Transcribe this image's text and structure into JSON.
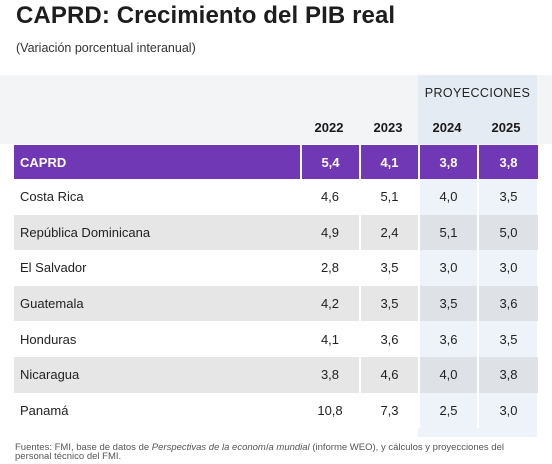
{
  "title": "CAPRD: Crecimiento del PIB real",
  "subtitle": "(Variación porcentual interanual)",
  "projections_label": "PROYECCIONES",
  "years": [
    "2022",
    "2023",
    "2024",
    "2025"
  ],
  "table": {
    "aggregate": {
      "name": "CAPRD",
      "values": [
        "5,4",
        "4,1",
        "3,8",
        "3,8"
      ]
    },
    "rows": [
      {
        "name": "Costa Rica",
        "values": [
          "4,6",
          "5,1",
          "4,0",
          "3,5"
        ]
      },
      {
        "name": "República Dominicana",
        "values": [
          "4,9",
          "2,4",
          "5,1",
          "5,0"
        ]
      },
      {
        "name": "El Salvador",
        "values": [
          "2,8",
          "3,5",
          "3,0",
          "3,0"
        ]
      },
      {
        "name": "Guatemala",
        "values": [
          "4,2",
          "3,5",
          "3,5",
          "3,6"
        ]
      },
      {
        "name": "Honduras",
        "values": [
          "4,1",
          "3,6",
          "3,6",
          "3,5"
        ]
      },
      {
        "name": "Nicaragua",
        "values": [
          "3,8",
          "4,6",
          "4,0",
          "3,8"
        ]
      },
      {
        "name": "Panamá",
        "values": [
          "10,8",
          "7,3",
          "2,5",
          "3,0"
        ]
      }
    ]
  },
  "footnote": {
    "prefix": "Fuentes: FMI, base de datos de ",
    "source_title": "Perspectivas de la economía mundial",
    "suffix": " (informe WEO), y cálculos y proyecciones del personal técnico del FMI."
  },
  "colors": {
    "accent": "#7138b6",
    "stripe": "#e6e6e6",
    "projection_shade": "#dbe6f2"
  }
}
